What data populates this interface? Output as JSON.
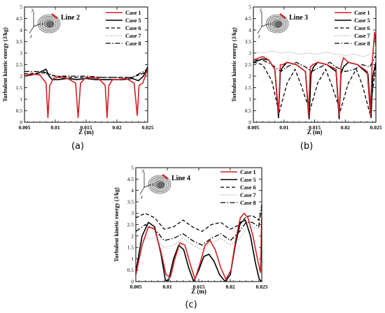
{
  "figure": {
    "captions": [
      "(a)",
      "(b)",
      "(c)"
    ]
  },
  "series_styles": [
    {
      "name": "Case 1",
      "color": "#d11f24",
      "dash": "solid",
      "width": 1.6
    },
    {
      "name": "Case 5",
      "color": "#000000",
      "dash": "solid",
      "width": 1.6
    },
    {
      "name": "Case 6",
      "color": "#000000",
      "dash": "dashed",
      "width": 1.3
    },
    {
      "name": "Case 7",
      "color": "#9a9a9a",
      "dash": "dotted",
      "width": 1.0
    },
    {
      "name": "Case 8",
      "color": "#000000",
      "dash": "dashdot",
      "width": 1.3
    }
  ],
  "chart_data": [
    {
      "type": "line",
      "panel": "(a)",
      "inset_label": "Line 2",
      "xlabel": "Z (m)",
      "ylabel": "Turbulent kinetic energy (J/kg)",
      "xlim": [
        0.005,
        0.025
      ],
      "ylim": [
        0,
        5
      ],
      "xticks": [
        "0.005",
        "0.01",
        "0.015",
        "0.02",
        "0.025"
      ],
      "yticks": [
        "0",
        "0.5",
        "1",
        "1.5",
        "2",
        "2.5",
        "3",
        "3.5",
        "4",
        "4.5",
        "5"
      ],
      "legend_position": "top-right",
      "series": [
        {
          "name": "Case 1",
          "x": [
            0.005,
            0.006,
            0.0075,
            0.0085,
            0.0088,
            0.0091,
            0.0097,
            0.0105,
            0.012,
            0.0133,
            0.0137,
            0.0141,
            0.0148,
            0.0155,
            0.017,
            0.0181,
            0.0184,
            0.0187,
            0.0193,
            0.02,
            0.0215,
            0.0228,
            0.0233,
            0.0236,
            0.0242,
            0.025
          ],
          "y": [
            2.0,
            2.1,
            2.05,
            1.7,
            0.2,
            1.6,
            1.9,
            1.95,
            1.9,
            1.7,
            0.2,
            1.7,
            1.9,
            1.95,
            1.9,
            1.6,
            0.2,
            1.6,
            1.85,
            1.85,
            1.9,
            1.7,
            0.3,
            1.6,
            1.7,
            2.3
          ]
        },
        {
          "name": "Case 5",
          "x": [
            0.005,
            0.007,
            0.0085,
            0.009,
            0.0095,
            0.0105,
            0.012,
            0.0135,
            0.015,
            0.0165,
            0.018,
            0.0195,
            0.021,
            0.0225,
            0.0235,
            0.0243,
            0.025
          ],
          "y": [
            2.0,
            2.1,
            2.3,
            2.0,
            1.85,
            1.85,
            1.9,
            1.85,
            1.9,
            1.85,
            1.85,
            1.85,
            1.85,
            1.9,
            1.8,
            2.0,
            2.4
          ]
        },
        {
          "name": "Case 6",
          "x": [
            0.005,
            0.008,
            0.01,
            0.0125,
            0.015,
            0.0175,
            0.02,
            0.0225,
            0.025
          ],
          "y": [
            2.1,
            2.15,
            2.0,
            1.95,
            1.95,
            1.95,
            1.95,
            1.95,
            2.2
          ]
        },
        {
          "name": "Case 7",
          "x": [
            0.005,
            0.008,
            0.01,
            0.0125,
            0.015,
            0.0175,
            0.02,
            0.0225,
            0.025
          ],
          "y": [
            2.05,
            2.1,
            1.95,
            1.9,
            1.9,
            1.9,
            1.9,
            1.95,
            2.15
          ]
        },
        {
          "name": "Case 8",
          "x": [
            0.005,
            0.008,
            0.01,
            0.0125,
            0.015,
            0.0175,
            0.02,
            0.0225,
            0.025
          ],
          "y": [
            2.2,
            2.2,
            2.0,
            2.0,
            2.0,
            1.95,
            1.95,
            1.95,
            2.3
          ]
        }
      ]
    },
    {
      "type": "line",
      "panel": "(b)",
      "inset_label": "Line 3",
      "xlabel": "Z (m)",
      "ylabel": "Turbulent kinetic energy (J/kg)",
      "xlim": [
        0.005,
        0.025
      ],
      "ylim": [
        0,
        5
      ],
      "xticks": [
        "0.005",
        "0.01",
        "0.015",
        "0.02",
        "0.025"
      ],
      "yticks": [
        "0",
        "0.5",
        "1",
        "1.5",
        "2",
        "2.5",
        "3",
        "3.5",
        "4",
        "4.5",
        "5"
      ],
      "legend_position": "top-right",
      "series": [
        {
          "name": "Case 1",
          "x": [
            0.005,
            0.0065,
            0.0075,
            0.0085,
            0.0091,
            0.0094,
            0.0098,
            0.0105,
            0.012,
            0.0135,
            0.014,
            0.0143,
            0.0147,
            0.0155,
            0.017,
            0.0185,
            0.019,
            0.0193,
            0.0197,
            0.0205,
            0.022,
            0.0236,
            0.0241,
            0.0244,
            0.0248,
            0.025
          ],
          "y": [
            2.7,
            2.85,
            2.7,
            2.3,
            0.4,
            2.5,
            2.5,
            2.6,
            2.5,
            2.2,
            0.3,
            2.4,
            2.5,
            2.6,
            2.5,
            2.3,
            0.3,
            2.4,
            2.8,
            2.6,
            2.5,
            2.2,
            0.3,
            2.6,
            3.9,
            3.3
          ]
        },
        {
          "name": "Case 5",
          "x": [
            0.005,
            0.0065,
            0.0075,
            0.0085,
            0.0091,
            0.0094,
            0.0098,
            0.0105,
            0.012,
            0.0135,
            0.0141,
            0.0144,
            0.0148,
            0.0155,
            0.017,
            0.0185,
            0.019,
            0.0193,
            0.0197,
            0.0205,
            0.022,
            0.0237,
            0.0242,
            0.0245,
            0.025
          ],
          "y": [
            2.6,
            2.75,
            2.7,
            2.3,
            0.2,
            2.2,
            2.4,
            2.6,
            2.5,
            2.2,
            0.15,
            2.1,
            2.4,
            2.6,
            2.5,
            2.2,
            0.15,
            2.1,
            2.4,
            2.6,
            2.5,
            2.1,
            0.2,
            2.0,
            2.6
          ]
        },
        {
          "name": "Case 6",
          "x": [
            0.005,
            0.0065,
            0.008,
            0.0092,
            0.0105,
            0.0118,
            0.0128,
            0.0142,
            0.0155,
            0.0168,
            0.0178,
            0.0192,
            0.0205,
            0.0218,
            0.0228,
            0.024,
            0.025
          ],
          "y": [
            2.6,
            2.5,
            1.8,
            0.4,
            1.7,
            2.3,
            1.6,
            0.5,
            1.7,
            2.3,
            1.6,
            0.5,
            1.7,
            2.3,
            1.6,
            0.4,
            2.5
          ]
        },
        {
          "name": "Case 7",
          "x": [
            0.005,
            0.0065,
            0.008,
            0.0095,
            0.011,
            0.0125,
            0.014,
            0.0155,
            0.017,
            0.0185,
            0.02,
            0.0215,
            0.023,
            0.0245,
            0.025
          ],
          "y": [
            3.05,
            3.0,
            3.1,
            3.0,
            3.05,
            2.95,
            3.0,
            2.95,
            3.05,
            2.95,
            2.9,
            2.95,
            2.85,
            3.0,
            3.2
          ]
        },
        {
          "name": "Case 8",
          "x": [
            0.005,
            0.0065,
            0.008,
            0.0095,
            0.0105,
            0.012,
            0.0135,
            0.0145,
            0.016,
            0.0175,
            0.0185,
            0.02,
            0.0215,
            0.0228,
            0.024,
            0.025
          ],
          "y": [
            2.7,
            2.7,
            2.5,
            2.2,
            2.4,
            2.6,
            2.4,
            2.2,
            2.4,
            2.6,
            2.4,
            2.2,
            2.3,
            2.5,
            2.4,
            2.9
          ]
        }
      ]
    },
    {
      "type": "line",
      "panel": "(c)",
      "inset_label": "Line 4",
      "xlabel": "Z (m)",
      "ylabel": "Turbulent kinetic energy (J/kg)",
      "xlim": [
        0.005,
        0.025
      ],
      "ylim": [
        0,
        5
      ],
      "xticks": [
        "0.005",
        "0.01",
        "0.015",
        "0.02",
        "0.025"
      ],
      "yticks": [
        "0",
        "0.5",
        "1",
        "1.5",
        "2",
        "2.5",
        "3",
        "3.5",
        "4",
        "4.5",
        "5"
      ],
      "legend_position": "top-right",
      "series": [
        {
          "name": "Case 1",
          "x": [
            0.005,
            0.006,
            0.007,
            0.008,
            0.009,
            0.0098,
            0.0105,
            0.0112,
            0.012,
            0.0128,
            0.0136,
            0.0144,
            0.0152,
            0.016,
            0.0168,
            0.0176,
            0.0185,
            0.0193,
            0.0201,
            0.0209,
            0.0216,
            0.0222,
            0.0228,
            0.0236,
            0.0243,
            0.0248,
            0.025
          ],
          "y": [
            0.3,
            1.6,
            2.4,
            2.3,
            1.3,
            0.3,
            0.2,
            1.0,
            1.7,
            1.6,
            0.8,
            0.1,
            0.8,
            1.6,
            1.8,
            1.4,
            0.6,
            0.1,
            0.5,
            1.9,
            2.8,
            3.0,
            2.8,
            2.0,
            1.0,
            0.4,
            3.0
          ]
        },
        {
          "name": "Case 5",
          "x": [
            0.005,
            0.006,
            0.007,
            0.008,
            0.009,
            0.0097,
            0.0102,
            0.011,
            0.0118,
            0.0126,
            0.0134,
            0.0142,
            0.015,
            0.0158,
            0.0166,
            0.0174,
            0.0183,
            0.0192,
            0.02,
            0.0208,
            0.0216,
            0.0224,
            0.0232,
            0.024,
            0.0246,
            0.025
          ],
          "y": [
            0.4,
            2.0,
            2.6,
            2.4,
            1.2,
            0.05,
            0.05,
            1.0,
            1.6,
            1.4,
            0.6,
            0.0,
            0.5,
            1.1,
            1.2,
            0.9,
            0.3,
            0.0,
            0.3,
            1.6,
            2.6,
            2.7,
            2.0,
            0.8,
            0.1,
            0.0
          ]
        },
        {
          "name": "Case 6",
          "x": [
            0.005,
            0.0065,
            0.008,
            0.0095,
            0.011,
            0.0125,
            0.014,
            0.0155,
            0.017,
            0.0185,
            0.02,
            0.0215,
            0.0225,
            0.0235,
            0.0245,
            0.025
          ],
          "y": [
            2.8,
            3.0,
            2.8,
            2.3,
            2.4,
            2.7,
            2.4,
            2.2,
            2.5,
            2.6,
            2.3,
            2.5,
            2.85,
            2.9,
            2.7,
            3.2
          ]
        },
        {
          "name": "Case 7",
          "x": [
            0.005,
            0.0065,
            0.008,
            0.0095,
            0.011,
            0.0125,
            0.014,
            0.0155,
            0.017,
            0.0185,
            0.02,
            0.0215,
            0.0225,
            0.0235,
            0.0245,
            0.025
          ],
          "y": [
            1.5,
            1.9,
            1.9,
            1.5,
            1.6,
            1.9,
            1.6,
            1.4,
            1.7,
            1.9,
            1.6,
            1.9,
            2.3,
            2.4,
            2.3,
            2.8
          ]
        },
        {
          "name": "Case 8",
          "x": [
            0.005,
            0.0065,
            0.008,
            0.0095,
            0.011,
            0.0125,
            0.014,
            0.0155,
            0.017,
            0.0185,
            0.02,
            0.0215,
            0.0225,
            0.0235,
            0.0245,
            0.025
          ],
          "y": [
            2.2,
            2.5,
            2.3,
            1.8,
            1.9,
            2.1,
            1.8,
            1.6,
            1.9,
            2.1,
            1.8,
            2.2,
            2.6,
            2.6,
            2.4,
            3.4
          ]
        }
      ]
    }
  ]
}
